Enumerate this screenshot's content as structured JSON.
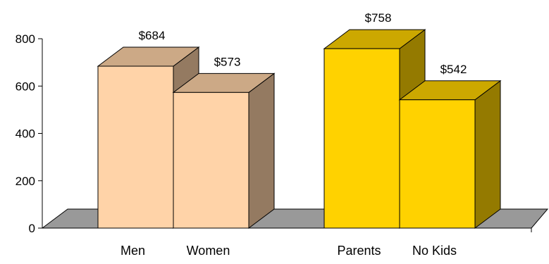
{
  "chart_data": {
    "type": "bar",
    "style": "3d",
    "categories": [
      "Men",
      "Women",
      "Parents",
      "No Kids"
    ],
    "values": [
      684,
      573,
      758,
      542
    ],
    "data_labels": [
      "$684",
      "$573",
      "$758",
      "$542"
    ],
    "groups": [
      {
        "categories": [
          "Men",
          "Women"
        ],
        "color": "#FFD3A8"
      },
      {
        "categories": [
          "Parents",
          "No Kids"
        ],
        "color": "#FFD200"
      }
    ],
    "ylim": [
      0,
      800
    ],
    "yticks": [
      0,
      200,
      400,
      600,
      800
    ],
    "ytick_labels": [
      "0",
      "200",
      "400",
      "600",
      "800"
    ],
    "floor_color": "#999999",
    "grid": false,
    "legend": "none",
    "title": "",
    "xlabel": "",
    "ylabel": ""
  }
}
